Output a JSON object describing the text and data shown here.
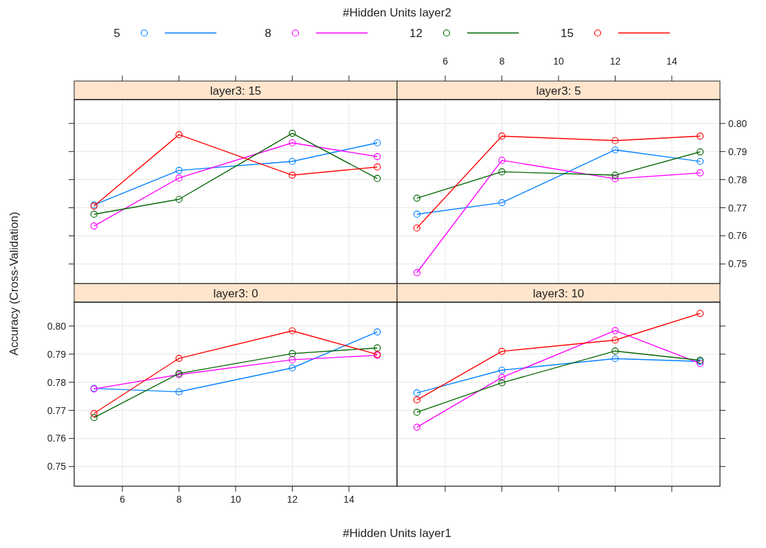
{
  "chart_data": [
    {
      "type": "line",
      "title": "layer3: 15",
      "xlabel": "#Hidden Units layer1",
      "ylabel": "Accuracy (Cross-Validation)",
      "legend_title": "#Hidden Units layer2",
      "legend": "top",
      "grid": true,
      "marker": "circle",
      "tick_labels": false,
      "x": [
        5,
        8,
        12,
        15
      ],
      "xlim": [
        4.3,
        15.7
      ],
      "xticks": [
        6,
        8,
        10,
        12,
        14
      ],
      "ylim": [
        0.743,
        0.8085
      ],
      "yticks": [
        0.75,
        0.76,
        0.77,
        0.78,
        0.79,
        0.8
      ],
      "series": [
        {
          "name": "5",
          "color": "#0080ff",
          "values": [
            0.771,
            0.7833,
            0.7865,
            0.7931
          ]
        },
        {
          "name": "8",
          "color": "#ff00ff",
          "values": [
            0.7635,
            0.7806,
            0.7931,
            0.7882
          ]
        },
        {
          "name": "12",
          "color": "#006400",
          "values": [
            0.7677,
            0.773,
            0.7965,
            0.7804
          ]
        },
        {
          "name": "15",
          "color": "#ff0000",
          "values": [
            0.7706,
            0.796,
            0.7816,
            0.7845
          ]
        }
      ]
    },
    {
      "type": "line",
      "title": "layer3:  5",
      "grid": true,
      "marker": "circle",
      "x": [
        5,
        8,
        12,
        15
      ],
      "xlim": [
        4.3,
        15.7
      ],
      "xticks": [
        6,
        8,
        10,
        12,
        14
      ],
      "ylim": [
        0.743,
        0.8085
      ],
      "yticks": [
        0.75,
        0.76,
        0.77,
        0.78,
        0.79,
        {
          "value": 0.8,
          "label": "0.80"
        }
      ],
      "series": [
        {
          "color": "#0080ff",
          "values": [
            0.7677,
            0.7718,
            0.7906,
            0.7865
          ]
        },
        {
          "color": "#ff00ff",
          "values": [
            0.7469,
            0.7869,
            0.7803,
            0.7824
          ]
        },
        {
          "color": "#006400",
          "values": [
            0.7734,
            0.7828,
            0.7816,
            0.7899
          ]
        },
        {
          "color": "#ff0000",
          "values": [
            0.7628,
            0.7955,
            0.7939,
            0.7955
          ]
        }
      ]
    },
    {
      "type": "line",
      "title": "layer3:  0",
      "grid": true,
      "marker": "circle",
      "x": [
        5,
        8,
        12,
        15
      ],
      "xlim": [
        4.3,
        15.7
      ],
      "xticks": [
        6,
        8,
        10,
        12,
        14
      ],
      "ylim": [
        0.743,
        0.8085
      ],
      "yticks": [
        0.75,
        0.76,
        0.77,
        0.78,
        0.79,
        {
          "value": 0.8,
          "label": "0.80"
        }
      ],
      "series": [
        {
          "color": "#0080ff",
          "values": [
            0.7778,
            0.7766,
            0.7851,
            0.7979
          ]
        },
        {
          "color": "#ff00ff",
          "values": [
            0.7776,
            0.7827,
            0.788,
            0.7896
          ]
        },
        {
          "color": "#006400",
          "values": [
            0.7674,
            0.7831,
            0.7902,
            0.7922
          ]
        },
        {
          "color": "#ff0000",
          "values": [
            0.7689,
            0.7885,
            0.7983,
            0.7899
          ]
        }
      ]
    },
    {
      "type": "line",
      "title": "layer3: 10",
      "grid": true,
      "marker": "circle",
      "tick_labels": false,
      "x": [
        5,
        8,
        12,
        15
      ],
      "xlim": [
        4.3,
        15.7
      ],
      "xticks": [
        6,
        8,
        10,
        12,
        14
      ],
      "ylim": [
        0.743,
        0.8085
      ],
      "yticks": [
        0.75,
        0.76,
        0.77,
        0.78,
        0.79,
        0.8
      ],
      "series": [
        {
          "color": "#0080ff",
          "values": [
            0.7762,
            0.7843,
            0.7884,
            0.7874
          ]
        },
        {
          "color": "#ff00ff",
          "values": [
            0.764,
            0.7817,
            0.7984,
            0.7867
          ]
        },
        {
          "color": "#006400",
          "values": [
            0.7693,
            0.7798,
            0.7911,
            0.7878
          ]
        },
        {
          "color": "#ff0000",
          "values": [
            0.7737,
            0.791,
            0.795,
            0.8045
          ]
        }
      ]
    }
  ]
}
